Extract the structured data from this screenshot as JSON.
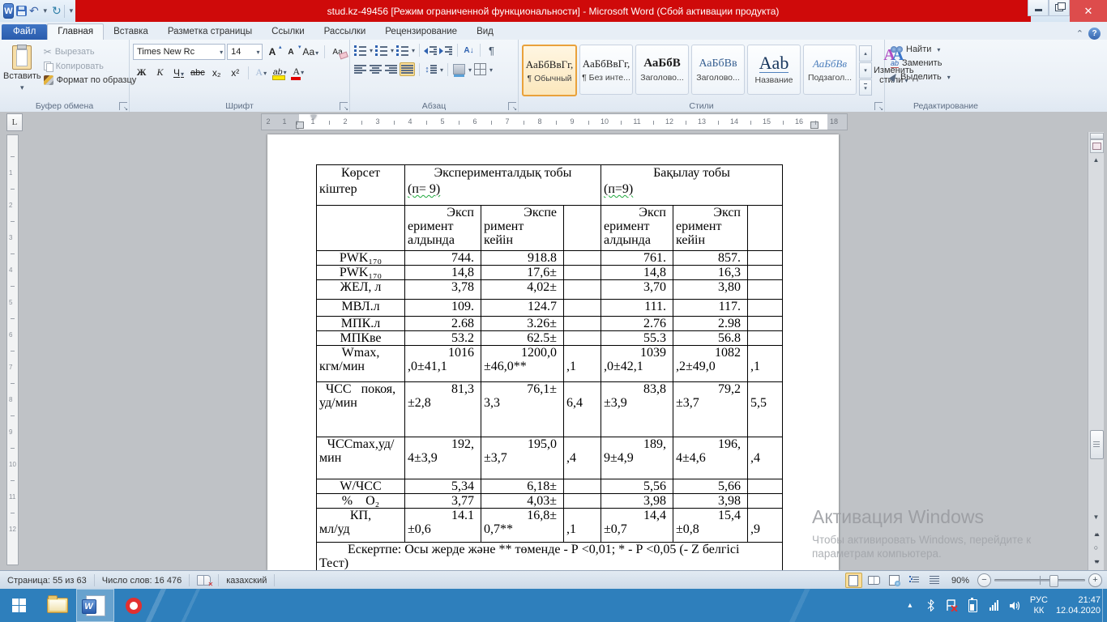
{
  "titlebar": {
    "title": "stud.kz-49456 [Режим ограниченной функциональности]  -  Microsoft Word (Сбой активации продукта)"
  },
  "tabs": {
    "file": "Файл",
    "active": "Главная",
    "items": [
      "Главная",
      "Вставка",
      "Разметка страницы",
      "Ссылки",
      "Рассылки",
      "Рецензирование",
      "Вид"
    ]
  },
  "ribbon": {
    "clipboard": {
      "group": "Буфер обмена",
      "paste": "Вставить",
      "cut": "Вырезать",
      "copy": "Копировать",
      "format_painter": "Формат по образцу"
    },
    "font": {
      "group": "Шрифт",
      "family": "Times New Rc",
      "size": "14",
      "bold": "Ж",
      "italic": "К",
      "underline": "Ч",
      "strike": "abc",
      "subscript": "х₂",
      "superscript": "х²",
      "change_case": "Аа",
      "glow": "А",
      "highlight": "ab",
      "font_color": "А",
      "clear": "Аа"
    },
    "paragraph": {
      "group": "Абзац"
    },
    "styles": {
      "group": "Стили",
      "change": "Изменить стили",
      "gallery": [
        {
          "sample": "АаБбВвГг,",
          "label": "¶ Обычный"
        },
        {
          "sample": "АаБбВвГг,",
          "label": "¶ Без инте..."
        },
        {
          "sample": "АаБбВ",
          "label": "Заголово..."
        },
        {
          "sample": "АаБбВв",
          "label": "Заголово..."
        },
        {
          "sample": "Аab",
          "label": "Название"
        },
        {
          "sample": "АаБбВв",
          "label": "Подзагол..."
        }
      ]
    },
    "editing": {
      "group": "Редактирование",
      "find": "Найти",
      "replace": "Заменить",
      "select": "Выделить"
    }
  },
  "ruler": {
    "margin_numbers": [
      "2",
      "1"
    ],
    "main_numbers": [
      "1",
      "2",
      "3",
      "4",
      "5",
      "6",
      "7",
      "8",
      "9",
      "10",
      "11",
      "12",
      "13",
      "14",
      "15",
      "16"
    ],
    "right_numbers": [
      "18"
    ],
    "vertical_numbers": [
      "1",
      "2",
      "3",
      "4",
      "5",
      "6",
      "7",
      "8",
      "9",
      "10",
      "11",
      "12"
    ]
  },
  "document": {
    "table": {
      "rows": [
        {
          "type": "h1",
          "cells": [
            {
              "lines": [
                "Көрсет",
                "кіштер"
              ]
            },
            {
              "span": 3,
              "lines": [
                "Эксперименталдық тобы",
                "(п= 9)"
              ]
            },
            {
              "span": 3,
              "lines": [
                "Бақылау тобы",
                "(п=9)"
              ]
            }
          ]
        },
        {
          "type": "h2",
          "cells": [
            {
              "lines": [
                ""
              ]
            },
            {
              "lines": [
                "Эксп",
                "еримент",
                "алдында"
              ]
            },
            {
              "lines": [
                "Экспе",
                "римент",
                "кейін"
              ]
            },
            {
              "lines": [
                ""
              ]
            },
            {
              "lines": [
                "Эксп",
                "еримент",
                "алдында"
              ]
            },
            {
              "lines": [
                "Эксп",
                "еримент",
                "кейін"
              ]
            },
            {
              "lines": [
                ""
              ]
            }
          ]
        },
        {
          "type": "d",
          "cells": [
            {
              "lines": [
                "PWK₁₇₀"
              ]
            },
            {
              "lines": [
                "744."
              ]
            },
            {
              "lines": [
                "918.8"
              ]
            },
            {
              "lines": [
                ""
              ]
            },
            {
              "lines": [
                "761."
              ]
            },
            {
              "lines": [
                "857."
              ]
            },
            {
              "lines": [
                ""
              ]
            }
          ]
        },
        {
          "type": "d",
          "cells": [
            {
              "lines": [
                "PWK₁₇₀"
              ]
            },
            {
              "lines": [
                "14,8"
              ]
            },
            {
              "lines": [
                "17,6±"
              ]
            },
            {
              "lines": [
                ""
              ]
            },
            {
              "lines": [
                "14,8"
              ]
            },
            {
              "lines": [
                "16,3"
              ]
            },
            {
              "lines": [
                ""
              ]
            }
          ]
        },
        {
          "type": "d",
          "cells": [
            {
              "lines": [
                "ЖЕЛ, л"
              ]
            },
            {
              "lines": [
                "3,78"
              ]
            },
            {
              "lines": [
                "4,02±"
              ]
            },
            {
              "lines": [
                ""
              ]
            },
            {
              "lines": [
                "3,70"
              ]
            },
            {
              "lines": [
                "3,80"
              ]
            },
            {
              "lines": [
                ""
              ]
            }
          ]
        },
        {
          "type": "d",
          "cells": [
            {
              "lines": [
                "МВЛ.л"
              ]
            },
            {
              "lines": [
                "109."
              ]
            },
            {
              "lines": [
                "124.7"
              ]
            },
            {
              "lines": [
                ""
              ]
            },
            {
              "lines": [
                "111."
              ]
            },
            {
              "lines": [
                "117."
              ]
            },
            {
              "lines": [
                ""
              ]
            }
          ]
        },
        {
          "type": "d",
          "cells": [
            {
              "lines": [
                "МПК.л"
              ]
            },
            {
              "lines": [
                "2.68"
              ]
            },
            {
              "lines": [
                "3.26±"
              ]
            },
            {
              "lines": [
                ""
              ]
            },
            {
              "lines": [
                "2.76"
              ]
            },
            {
              "lines": [
                "2.98"
              ]
            },
            {
              "lines": [
                ""
              ]
            }
          ]
        },
        {
          "type": "d",
          "cells": [
            {
              "lines": [
                "МПКве"
              ]
            },
            {
              "lines": [
                "53.2"
              ]
            },
            {
              "lines": [
                "62.5±"
              ]
            },
            {
              "lines": [
                ""
              ]
            },
            {
              "lines": [
                "55.3"
              ]
            },
            {
              "lines": [
                "56.8"
              ]
            },
            {
              "lines": [
                ""
              ]
            }
          ]
        },
        {
          "type": "d",
          "cells": [
            {
              "lines": [
                "Wmax,",
                "кгм/мин"
              ]
            },
            {
              "lines": [
                "1016",
                ",0±41,1"
              ]
            },
            {
              "lines": [
                "1200,0",
                "±46,0**"
              ]
            },
            {
              "lines": [
                "",
                ",1"
              ]
            },
            {
              "lines": [
                "1039",
                ",0±42,1"
              ]
            },
            {
              "lines": [
                "1082",
                ",2±49,0"
              ]
            },
            {
              "lines": [
                "",
                ",1"
              ]
            }
          ]
        },
        {
          "type": "d",
          "cells": [
            {
              "lines": [
                "ЧСС   покоя,",
                "уд/мин"
              ]
            },
            {
              "lines": [
                "81,3",
                "±2,8"
              ]
            },
            {
              "lines": [
                "76,1±",
                "3,3"
              ]
            },
            {
              "lines": [
                "",
                "6,4"
              ]
            },
            {
              "lines": [
                "83,8",
                "±3,9"
              ]
            },
            {
              "lines": [
                "79,2",
                "±3,7"
              ]
            },
            {
              "lines": [
                "",
                "5,5"
              ]
            }
          ]
        },
        {
          "type": "d",
          "cells": [
            {
              "lines": [
                "ЧССmax,уд/",
                "мин"
              ]
            },
            {
              "lines": [
                "192,",
                "4±3,9"
              ]
            },
            {
              "lines": [
                "195,0",
                "±3,7"
              ]
            },
            {
              "lines": [
                "",
                ",4"
              ]
            },
            {
              "lines": [
                "189,",
                "9±4,9"
              ]
            },
            {
              "lines": [
                "196,",
                "4±4,6"
              ]
            },
            {
              "lines": [
                "",
                ",4"
              ]
            }
          ]
        },
        {
          "type": "d",
          "cells": [
            {
              "lines": [
                "W/ЧСС"
              ]
            },
            {
              "lines": [
                "5,34"
              ]
            },
            {
              "lines": [
                "6,18±"
              ]
            },
            {
              "lines": [
                ""
              ]
            },
            {
              "lines": [
                "5,56"
              ]
            },
            {
              "lines": [
                "5,66"
              ]
            },
            {
              "lines": [
                ""
              ]
            }
          ]
        },
        {
          "type": "d",
          "cells": [
            {
              "lines": [
                "%    О₂"
              ]
            },
            {
              "lines": [
                "3,77"
              ]
            },
            {
              "lines": [
                "4,03±"
              ]
            },
            {
              "lines": [
                ""
              ]
            },
            {
              "lines": [
                "3,98"
              ]
            },
            {
              "lines": [
                "3,98"
              ]
            },
            {
              "lines": [
                ""
              ]
            }
          ]
        },
        {
          "type": "d",
          "cells": [
            {
              "lines": [
                "КП,",
                "мл/уд"
              ]
            },
            {
              "lines": [
                "14.1",
                "±0,6"
              ]
            },
            {
              "lines": [
                "16,8±",
                "0,7**"
              ]
            },
            {
              "lines": [
                "",
                ",1"
              ]
            },
            {
              "lines": [
                "14,4",
                "±0,7"
              ]
            },
            {
              "lines": [
                "15,4",
                "±0,8"
              ]
            },
            {
              "lines": [
                "",
                ",9"
              ]
            }
          ]
        },
        {
          "type": "fn",
          "cells": [
            {
              "span": 7,
              "lines": [
                "Ескертпе: Осы жерде және ** төменде - Р <0,01; * - Р <0,05 (- Z белгісі",
                "Тест)"
              ]
            }
          ]
        }
      ]
    }
  },
  "statusbar": {
    "page": "Страница: 55 из 63",
    "words": "Число слов: 16 476",
    "language": "казахский",
    "zoom": "90%"
  },
  "watermark": {
    "line1": "Активация Windows",
    "line2": "Чтобы активировать Windows, перейдите к",
    "line3": "параметрам компьютера."
  },
  "tray": {
    "lang_top": "РУС",
    "lang_bottom": "КК",
    "time": "21:47",
    "date": "12.04.2020"
  }
}
